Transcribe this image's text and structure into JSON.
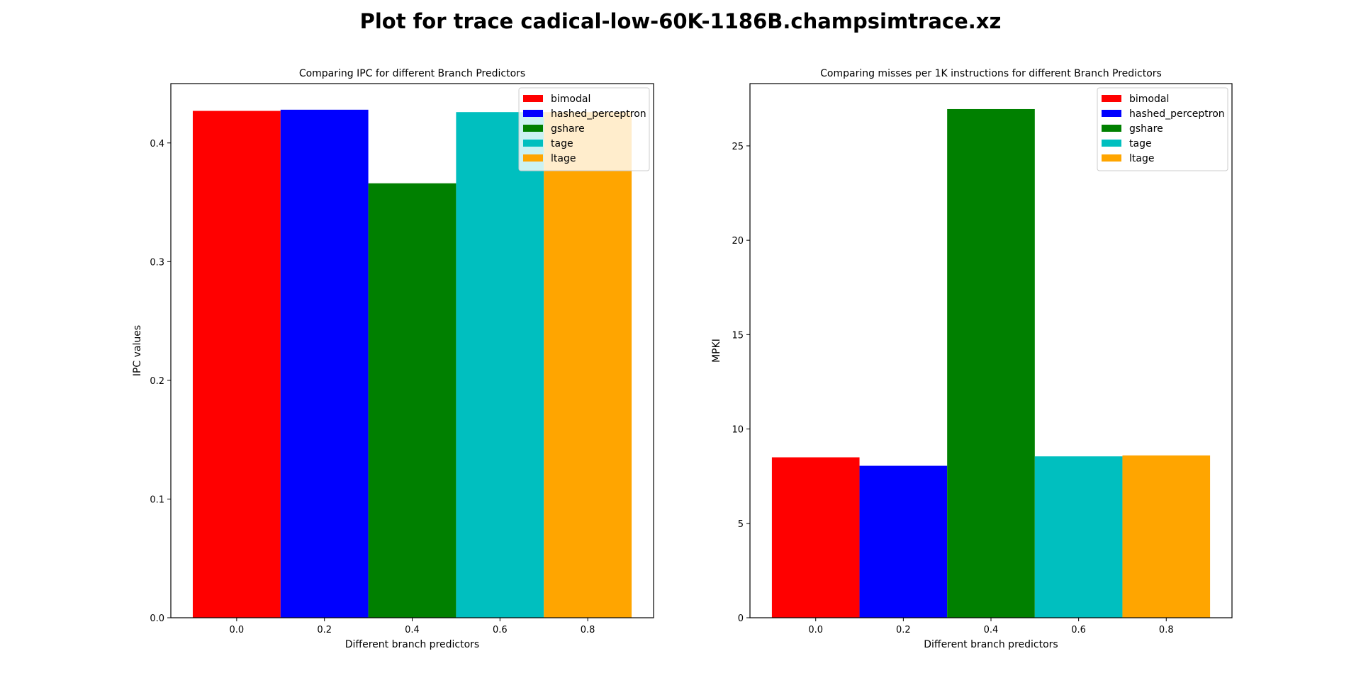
{
  "figure_title": "Plot for trace cadical-low-60K-1186B.champsimtrace.xz",
  "chart_data": [
    {
      "type": "bar",
      "title": "Comparing IPC for different Branch Predictors",
      "xlabel": "Different branch predictors",
      "ylabel": "IPC values",
      "xlim": [
        -0.15,
        0.95
      ],
      "ylim": [
        0,
        0.45
      ],
      "xticks": [
        0.0,
        0.2,
        0.4,
        0.6,
        0.8
      ],
      "xtick_labels": [
        "0.0",
        "0.2",
        "0.4",
        "0.6",
        "0.8"
      ],
      "yticks": [
        0.0,
        0.1,
        0.2,
        0.3,
        0.4
      ],
      "ytick_labels": [
        "0.0",
        "0.1",
        "0.2",
        "0.3",
        "0.4"
      ],
      "bar_width": 0.2,
      "legend_loc": "upper right",
      "series": [
        {
          "name": "bimodal",
          "x": 0.0,
          "value": 0.427,
          "color": "#ff0000"
        },
        {
          "name": "hashed_perceptron",
          "x": 0.2,
          "value": 0.428,
          "color": "#0000ff"
        },
        {
          "name": "gshare",
          "x": 0.4,
          "value": 0.366,
          "color": "#008000"
        },
        {
          "name": "tage",
          "x": 0.6,
          "value": 0.426,
          "color": "#00bfbf"
        },
        {
          "name": "ltage",
          "x": 0.8,
          "value": 0.426,
          "color": "#ffa500"
        }
      ]
    },
    {
      "type": "bar",
      "title": "Comparing misses per 1K instructions for different Branch Predictors",
      "xlabel": "Different branch predictors",
      "ylabel": "MPKI",
      "xlim": [
        -0.15,
        0.95
      ],
      "ylim": [
        0,
        28.3
      ],
      "xticks": [
        0.0,
        0.2,
        0.4,
        0.6,
        0.8
      ],
      "xtick_labels": [
        "0.0",
        "0.2",
        "0.4",
        "0.6",
        "0.8"
      ],
      "yticks": [
        0,
        5,
        10,
        15,
        20,
        25
      ],
      "ytick_labels": [
        "0",
        "5",
        "10",
        "15",
        "20",
        "25"
      ],
      "bar_width": 0.2,
      "legend_loc": "upper right",
      "series": [
        {
          "name": "bimodal",
          "x": 0.0,
          "value": 8.5,
          "color": "#ff0000"
        },
        {
          "name": "hashed_perceptron",
          "x": 0.2,
          "value": 8.05,
          "color": "#0000ff"
        },
        {
          "name": "gshare",
          "x": 0.4,
          "value": 26.95,
          "color": "#008000"
        },
        {
          "name": "tage",
          "x": 0.6,
          "value": 8.55,
          "color": "#00bfbf"
        },
        {
          "name": "ltage",
          "x": 0.8,
          "value": 8.6,
          "color": "#ffa500"
        }
      ]
    }
  ]
}
